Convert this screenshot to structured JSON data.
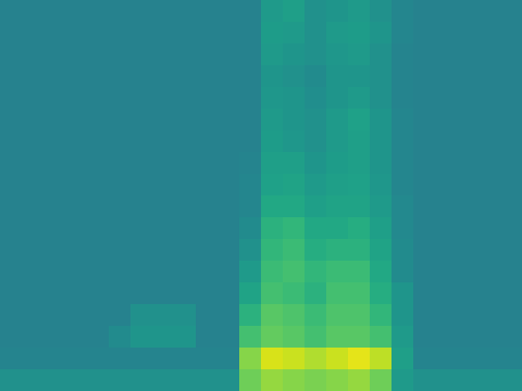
{
  "chart_data": {
    "type": "heatmap",
    "tick_labels": false,
    "zlim": [
      0,
      100
    ],
    "cells": [
      [
        44,
        44,
        44,
        44,
        44,
        44,
        44,
        44,
        44,
        44,
        44,
        44,
        54,
        56,
        50,
        52,
        54,
        50,
        46,
        44,
        44,
        44,
        44,
        44
      ],
      [
        44,
        44,
        44,
        44,
        44,
        44,
        44,
        44,
        44,
        44,
        44,
        44,
        55,
        54,
        50,
        54,
        55,
        52,
        46,
        44,
        44,
        44,
        44,
        44
      ],
      [
        44,
        44,
        44,
        44,
        44,
        44,
        44,
        44,
        44,
        44,
        44,
        44,
        54,
        52,
        50,
        53,
        54,
        50,
        45,
        44,
        44,
        44,
        44,
        44
      ],
      [
        44,
        44,
        44,
        44,
        44,
        44,
        44,
        44,
        44,
        44,
        44,
        44,
        52,
        50,
        48,
        52,
        52,
        50,
        45,
        44,
        44,
        44,
        44,
        44
      ],
      [
        44,
        44,
        44,
        44,
        44,
        44,
        44,
        44,
        44,
        44,
        44,
        44,
        53,
        52,
        49,
        52,
        54,
        50,
        45,
        44,
        44,
        44,
        44,
        44
      ],
      [
        44,
        44,
        44,
        44,
        44,
        44,
        44,
        44,
        44,
        44,
        44,
        44,
        54,
        52,
        50,
        54,
        57,
        52,
        46,
        44,
        44,
        44,
        44,
        44
      ],
      [
        44,
        44,
        44,
        44,
        44,
        44,
        44,
        44,
        44,
        44,
        44,
        44,
        55,
        53,
        50,
        54,
        56,
        52,
        46,
        44,
        44,
        44,
        44,
        44
      ],
      [
        44,
        44,
        44,
        44,
        44,
        44,
        44,
        44,
        44,
        44,
        44,
        45,
        56,
        56,
        52,
        55,
        56,
        52,
        46,
        44,
        44,
        44,
        44,
        44
      ],
      [
        44,
        44,
        44,
        44,
        44,
        44,
        44,
        44,
        44,
        44,
        44,
        46,
        57,
        58,
        54,
        56,
        57,
        53,
        46,
        44,
        44,
        44,
        44,
        44
      ],
      [
        44,
        44,
        44,
        44,
        44,
        44,
        44,
        44,
        44,
        44,
        44,
        46,
        60,
        60,
        56,
        58,
        58,
        54,
        47,
        44,
        44,
        44,
        44,
        44
      ],
      [
        44,
        44,
        44,
        44,
        44,
        44,
        44,
        44,
        44,
        44,
        44,
        48,
        64,
        66,
        60,
        60,
        62,
        56,
        47,
        44,
        44,
        44,
        44,
        44
      ],
      [
        44,
        44,
        44,
        44,
        44,
        44,
        44,
        44,
        44,
        44,
        44,
        50,
        66,
        68,
        62,
        64,
        64,
        58,
        48,
        44,
        44,
        44,
        44,
        44
      ],
      [
        44,
        44,
        44,
        44,
        44,
        44,
        44,
        44,
        44,
        44,
        44,
        54,
        68,
        70,
        66,
        68,
        68,
        60,
        48,
        44,
        44,
        44,
        44,
        44
      ],
      [
        44,
        44,
        44,
        44,
        44,
        44,
        44,
        44,
        44,
        44,
        44,
        58,
        70,
        68,
        64,
        70,
        70,
        62,
        52,
        44,
        44,
        44,
        44,
        44
      ],
      [
        44,
        44,
        44,
        44,
        44,
        44,
        50,
        50,
        50,
        44,
        44,
        64,
        74,
        72,
        68,
        72,
        72,
        66,
        52,
        44,
        44,
        44,
        44,
        44
      ],
      [
        44,
        44,
        44,
        44,
        44,
        48,
        52,
        52,
        52,
        44,
        44,
        70,
        76,
        74,
        70,
        74,
        74,
        70,
        54,
        44,
        44,
        44,
        44,
        44
      ],
      [
        45,
        45,
        45,
        45,
        45,
        45,
        45,
        45,
        45,
        45,
        45,
        82,
        94,
        92,
        88,
        92,
        96,
        90,
        56,
        45,
        45,
        45,
        45,
        45
      ],
      [
        50,
        50,
        50,
        50,
        50,
        50,
        50,
        50,
        50,
        50,
        50,
        78,
        84,
        82,
        80,
        82,
        84,
        78,
        54,
        50,
        50,
        50,
        50,
        50
      ]
    ]
  }
}
